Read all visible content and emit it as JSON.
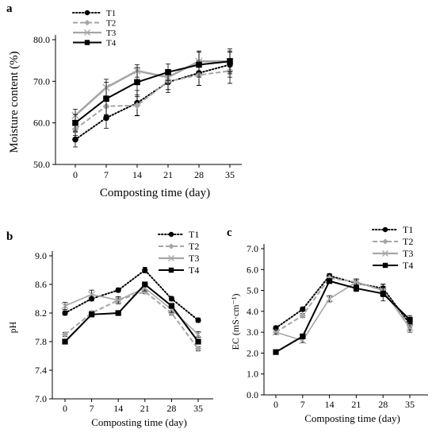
{
  "chart_data": [
    {
      "panel_label": "a",
      "type": "line",
      "xlabel": "Composting time (day)",
      "ylabel": "Moisture content (%)",
      "x": [
        0,
        7,
        14,
        21,
        28,
        35
      ],
      "xticks": [
        "0",
        "7",
        "14",
        "21",
        "28",
        "35"
      ],
      "yticks": [
        "50.0",
        "60.0",
        "70.0",
        "80.0"
      ],
      "ylim": [
        50,
        80
      ],
      "grid": false,
      "legend_position": "top-left",
      "series": [
        {
          "name": "T1",
          "values": [
            56.0,
            61.2,
            64.8,
            69.8,
            72.0,
            74.0
          ],
          "errors": [
            1.8,
            2.5,
            3.0,
            2.5,
            3.0,
            3.0
          ]
        },
        {
          "name": "T2",
          "values": [
            58.5,
            64.0,
            64.2,
            70.0,
            71.5,
            72.5
          ],
          "errors": [
            1.5,
            2.0,
            2.5,
            2.0,
            2.5,
            3.0
          ]
        },
        {
          "name": "T3",
          "values": [
            61.8,
            68.5,
            72.5,
            71.0,
            74.8,
            74.8
          ],
          "errors": [
            1.5,
            2.0,
            1.5,
            1.5,
            2.5,
            2.5
          ]
        },
        {
          "name": "T4",
          "values": [
            60.0,
            65.8,
            69.8,
            72.2,
            74.0,
            74.8
          ],
          "errors": [
            2.0,
            4.0,
            3.5,
            2.0,
            3.0,
            3.0
          ]
        }
      ]
    },
    {
      "panel_label": "b",
      "type": "line",
      "xlabel": "Composting time (day)",
      "ylabel": "pH",
      "x": [
        0,
        7,
        14,
        21,
        28,
        35
      ],
      "xticks": [
        "0",
        "7",
        "14",
        "21",
        "28",
        "35"
      ],
      "yticks": [
        "7.0",
        "7.4",
        "7.8",
        "8.2",
        "8.6",
        "9.0"
      ],
      "ylim": [
        7.0,
        9.0
      ],
      "grid": false,
      "legend_position": "top-right",
      "series": [
        {
          "name": "T1",
          "values": [
            8.2,
            8.4,
            8.52,
            8.8,
            8.4,
            8.1
          ],
          "errors": [
            0.03,
            0.03,
            0.03,
            0.04,
            0.03,
            0.03
          ]
        },
        {
          "name": "T2",
          "values": [
            7.9,
            8.2,
            8.38,
            8.5,
            8.2,
            7.7
          ],
          "errors": [
            0.03,
            0.03,
            0.03,
            0.03,
            0.03,
            0.03
          ]
        },
        {
          "name": "T3",
          "values": [
            8.3,
            8.46,
            8.38,
            8.55,
            8.25,
            7.9
          ],
          "errors": [
            0.05,
            0.06,
            0.05,
            0.04,
            0.04,
            0.04
          ]
        },
        {
          "name": "T4",
          "values": [
            7.8,
            8.18,
            8.2,
            8.6,
            8.3,
            7.8
          ],
          "errors": [
            0.03,
            0.03,
            0.03,
            0.03,
            0.03,
            0.03
          ]
        }
      ]
    },
    {
      "panel_label": "c",
      "type": "line",
      "xlabel": "Composting time (day)",
      "ylabel": "EC (mS·cm⁻¹)",
      "x": [
        0,
        7,
        14,
        21,
        28,
        35
      ],
      "xticks": [
        "0",
        "7",
        "14",
        "21",
        "28",
        "35"
      ],
      "yticks": [
        "0.0",
        "1.0",
        "2.0",
        "3.0",
        "4.0",
        "5.0",
        "6.0",
        "7.0"
      ],
      "ylim": [
        0,
        7
      ],
      "grid": false,
      "legend_position": "top-right",
      "series": [
        {
          "name": "T1",
          "values": [
            3.2,
            4.1,
            5.7,
            5.35,
            5.1,
            3.4
          ],
          "errors": [
            0.1,
            0.1,
            0.1,
            0.15,
            0.2,
            0.2
          ]
        },
        {
          "name": "T2",
          "values": [
            3.0,
            3.8,
            5.6,
            5.4,
            5.0,
            3.3
          ],
          "errors": [
            0.1,
            0.1,
            0.1,
            0.15,
            0.2,
            0.2
          ]
        },
        {
          "name": "T3",
          "values": [
            3.0,
            2.6,
            4.6,
            5.4,
            5.0,
            3.2
          ],
          "errors": [
            0.1,
            0.1,
            0.15,
            0.15,
            0.3,
            0.2
          ]
        },
        {
          "name": "T4",
          "values": [
            2.05,
            2.8,
            5.45,
            5.1,
            4.85,
            3.6
          ],
          "errors": [
            0.08,
            0.1,
            0.1,
            0.15,
            0.35,
            0.2
          ]
        }
      ]
    }
  ],
  "styles": {
    "T1": {
      "color": "#000000",
      "dash": "dotted",
      "marker": "circle"
    },
    "T2": {
      "color": "#a6a6a6",
      "dash": "dashed",
      "marker": "diamond"
    },
    "T3": {
      "color": "#a6a6a6",
      "dash": "solid",
      "marker": "x"
    },
    "T4": {
      "color": "#000000",
      "dash": "solid",
      "marker": "square"
    }
  }
}
